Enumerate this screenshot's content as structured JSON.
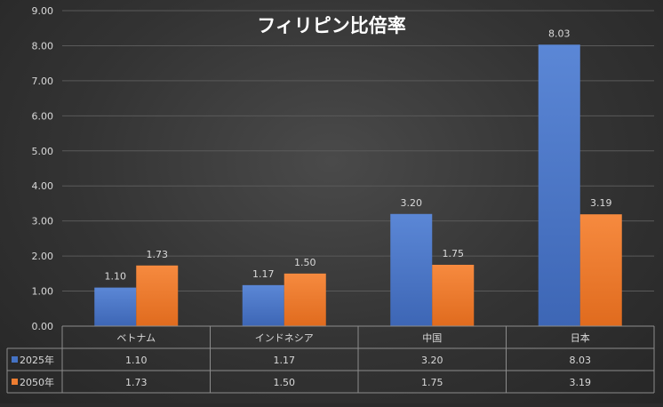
{
  "chart_data": {
    "type": "bar",
    "title": "フィリピン比倍率",
    "categories": [
      "ベトナム",
      "インドネシア",
      "中国",
      "日本"
    ],
    "series": [
      {
        "name": "2025年",
        "values": [
          1.1,
          1.17,
          3.2,
          8.03
        ],
        "color": "#4472c4"
      },
      {
        "name": "2050年",
        "values": [
          1.73,
          1.5,
          1.75,
          3.19
        ],
        "color": "#ed7d31"
      }
    ],
    "ylim": [
      0,
      9
    ],
    "yticks": [
      "0.00",
      "1.00",
      "2.00",
      "3.00",
      "4.00",
      "5.00",
      "6.00",
      "7.00",
      "8.00",
      "9.00"
    ],
    "grid": true,
    "data_labels": true,
    "data_table": true,
    "legend": "data-table"
  }
}
